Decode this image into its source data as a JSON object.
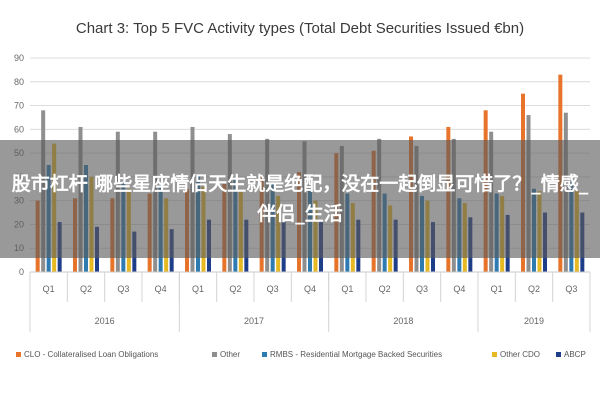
{
  "chart_data": {
    "type": "bar",
    "title": "Chart 3: Top 5 FVC Activity types (Total Debt Securities Issued €bn)",
    "categories": [
      "Q1",
      "Q2",
      "Q3",
      "Q4",
      "Q1",
      "Q2",
      "Q3",
      "Q4",
      "Q1",
      "Q2",
      "Q3",
      "Q4",
      "Q1",
      "Q2",
      "Q3"
    ],
    "groups": [
      {
        "label": "2016",
        "span": 4
      },
      {
        "label": "2017",
        "span": 4
      },
      {
        "label": "2018",
        "span": 4
      },
      {
        "label": "2019",
        "span": 3
      }
    ],
    "yticks": [
      0,
      10,
      20,
      30,
      40,
      50,
      60,
      70,
      80,
      90
    ],
    "ylim": [
      0,
      90
    ],
    "grid": true,
    "legend_position": "bottom",
    "series": [
      {
        "name": "CLO - Collateralised Loan Obligations",
        "color": "#e8732b",
        "values": [
          30,
          31,
          31,
          33,
          35,
          37,
          40,
          42,
          50,
          51,
          57,
          61,
          68,
          75,
          83
        ]
      },
      {
        "name": "Other",
        "color": "#8f8f8f",
        "values": [
          68,
          61,
          59,
          59,
          61,
          58,
          56,
          55,
          53,
          56,
          53,
          56,
          59,
          66,
          67
        ]
      },
      {
        "name": "RMBS - Residential Mortgage Backed Securities",
        "color": "#2e7bb2",
        "values": [
          45,
          45,
          38,
          36,
          41,
          39,
          37,
          35,
          33,
          33,
          32,
          31,
          33,
          35,
          38
        ]
      },
      {
        "name": "Other CDO",
        "color": "#e6b821",
        "values": [
          54,
          40,
          35,
          31,
          36,
          34,
          32,
          30,
          29,
          28,
          30,
          29,
          32,
          34,
          34
        ]
      },
      {
        "name": "ABCP",
        "color": "#1f3e8a",
        "values": [
          21,
          19,
          17,
          18,
          22,
          22,
          21,
          21,
          22,
          22,
          21,
          23,
          24,
          25,
          25
        ]
      }
    ]
  },
  "overlay": {
    "text": "股市杠杆 哪些星座情侣天生就是绝配，没在一起倒显可惜了？_情感_伴侣_生活"
  }
}
